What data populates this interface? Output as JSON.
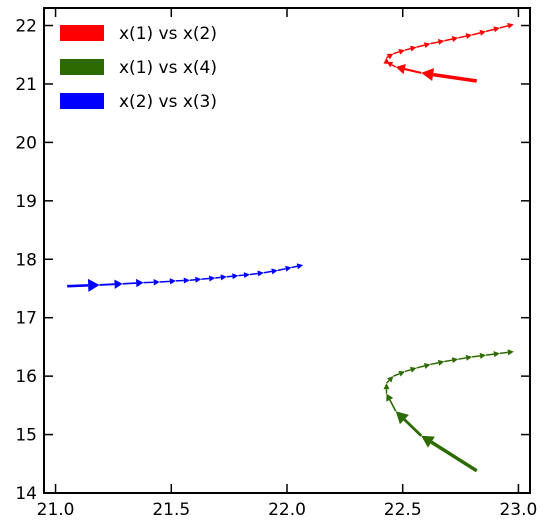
{
  "chart_data": {
    "type": "quiver",
    "title": "",
    "xlabel": "",
    "ylabel": "",
    "xlim": [
      20.95,
      23.05
    ],
    "ylim": [
      14.0,
      22.3
    ],
    "xticks": [
      21.0,
      21.5,
      22.0,
      22.5,
      23.0
    ],
    "xtick_labels": [
      "21.0",
      "21.5",
      "22.0",
      "22.5",
      "23.0"
    ],
    "yticks": [
      14,
      15,
      16,
      17,
      18,
      19,
      20,
      21,
      22
    ],
    "ytick_labels": [
      "14",
      "15",
      "16",
      "17",
      "18",
      "19",
      "20",
      "21",
      "22"
    ],
    "grid": false,
    "legend_position": "top-left",
    "series": [
      {
        "name": "x(1) vs x(2)",
        "color": "#ff0000",
        "points": [
          [
            22.82,
            21.05
          ],
          [
            22.58,
            21.19
          ],
          [
            22.47,
            21.29
          ],
          [
            22.43,
            21.38
          ],
          [
            22.43,
            21.45
          ],
          [
            22.46,
            21.52
          ],
          [
            22.51,
            21.58
          ],
          [
            22.56,
            21.63
          ],
          [
            22.62,
            21.69
          ],
          [
            22.68,
            21.74
          ],
          [
            22.74,
            21.79
          ],
          [
            22.8,
            21.84
          ],
          [
            22.86,
            21.9
          ],
          [
            22.92,
            21.96
          ],
          [
            22.98,
            22.02
          ]
        ]
      },
      {
        "name": "x(1) vs x(4)",
        "color": "#2d6b00",
        "points": [
          [
            22.82,
            14.38
          ],
          [
            22.58,
            14.98
          ],
          [
            22.47,
            15.4
          ],
          [
            22.43,
            15.7
          ],
          [
            22.43,
            15.88
          ],
          [
            22.46,
            16.0
          ],
          [
            22.51,
            16.08
          ],
          [
            22.56,
            16.14
          ],
          [
            22.62,
            16.2
          ],
          [
            22.68,
            16.25
          ],
          [
            22.74,
            16.29
          ],
          [
            22.8,
            16.33
          ],
          [
            22.86,
            16.36
          ],
          [
            22.92,
            16.39
          ],
          [
            22.98,
            16.42
          ]
        ]
      },
      {
        "name": "x(2) vs x(3)",
        "color": "#0000ff",
        "points": [
          [
            21.05,
            17.54
          ],
          [
            21.19,
            17.56
          ],
          [
            21.29,
            17.58
          ],
          [
            21.38,
            17.6
          ],
          [
            21.45,
            17.61
          ],
          [
            21.52,
            17.63
          ],
          [
            21.58,
            17.64
          ],
          [
            21.63,
            17.66
          ],
          [
            21.69,
            17.68
          ],
          [
            21.74,
            17.7
          ],
          [
            21.79,
            17.72
          ],
          [
            21.84,
            17.74
          ],
          [
            21.9,
            17.77
          ],
          [
            21.96,
            17.81
          ],
          [
            22.02,
            17.86
          ],
          [
            22.07,
            17.9
          ]
        ]
      }
    ]
  }
}
